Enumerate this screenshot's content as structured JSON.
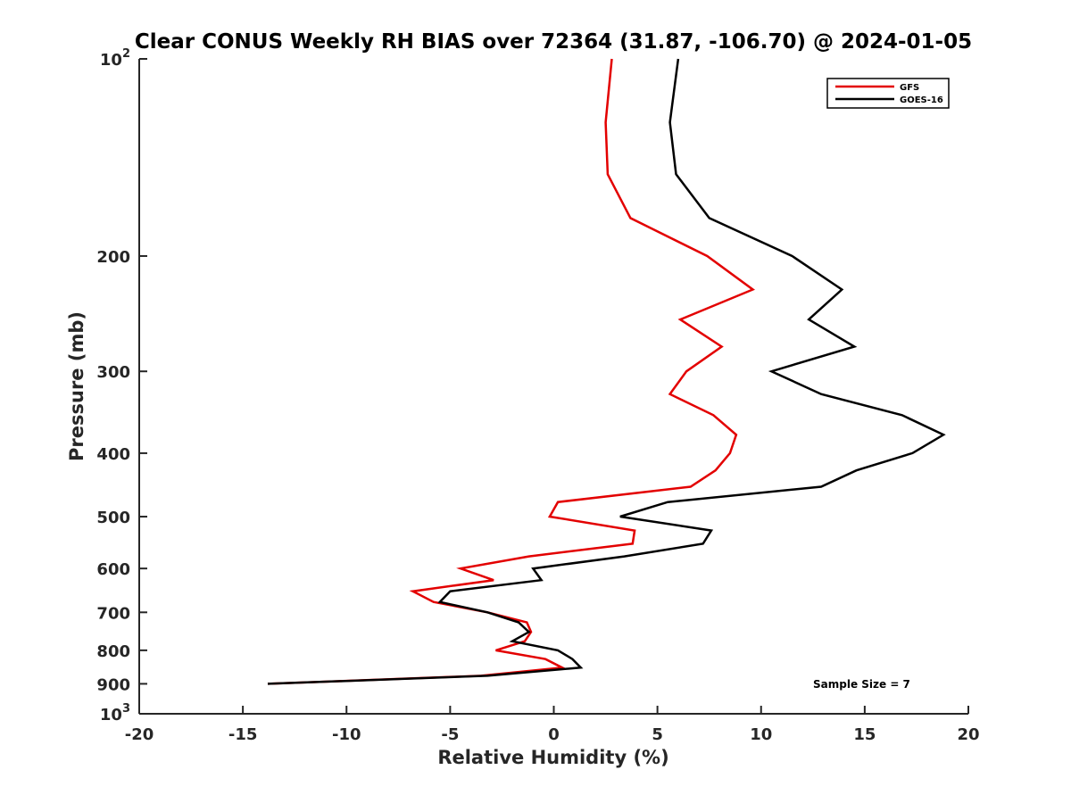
{
  "chart_data": {
    "type": "line",
    "title": "Clear CONUS Weekly RH BIAS over 72364 (31.87, -106.70) @ 2024-01-05",
    "xlabel": "Relative Humidity (%)",
    "ylabel": "Pressure (mb)",
    "xlim": [
      -20,
      20
    ],
    "ylim": [
      100,
      1000
    ],
    "y_scale": "log",
    "y_reversed": true,
    "x_ticks": [
      -20,
      -15,
      -10,
      -5,
      0,
      5,
      10,
      15,
      20
    ],
    "x_tick_labels": [
      "-20",
      "-15",
      "-10",
      "-5",
      "0",
      "5",
      "10",
      "15",
      "20"
    ],
    "y_ticks": [
      100,
      200,
      300,
      400,
      500,
      600,
      700,
      800,
      900,
      1000
    ],
    "y_tick_labels": [
      {
        "base": "10",
        "exp": "2"
      },
      {
        "base": "200",
        "exp": ""
      },
      {
        "base": "300",
        "exp": ""
      },
      {
        "base": "400",
        "exp": ""
      },
      {
        "base": "500",
        "exp": ""
      },
      {
        "base": "600",
        "exp": ""
      },
      {
        "base": "700",
        "exp": ""
      },
      {
        "base": "800",
        "exp": ""
      },
      {
        "base": "900",
        "exp": ""
      },
      {
        "base": "10",
        "exp": "3"
      }
    ],
    "grid": false,
    "legend_position": "top-right",
    "annotation": "Sample Size = 7",
    "series": [
      {
        "name": "GFS",
        "color": "#e30000",
        "points": [
          [
            2.8,
            100
          ],
          [
            2.5,
            125
          ],
          [
            2.6,
            150
          ],
          [
            3.7,
            175
          ],
          [
            7.4,
            200
          ],
          [
            9.6,
            225
          ],
          [
            6.1,
            250
          ],
          [
            8.1,
            275
          ],
          [
            6.4,
            300
          ],
          [
            5.6,
            325
          ],
          [
            7.7,
            350
          ],
          [
            8.8,
            375
          ],
          [
            8.5,
            400
          ],
          [
            7.8,
            425
          ],
          [
            6.6,
            450
          ],
          [
            0.2,
            475
          ],
          [
            -0.2,
            500
          ],
          [
            3.9,
            525
          ],
          [
            3.8,
            550
          ],
          [
            -1.2,
            575
          ],
          [
            -4.5,
            600
          ],
          [
            -2.9,
            625
          ],
          [
            -6.8,
            650
          ],
          [
            -5.8,
            675
          ],
          [
            -3.2,
            700
          ],
          [
            -1.3,
            725
          ],
          [
            -1.1,
            750
          ],
          [
            -1.4,
            775
          ],
          [
            -2.8,
            800
          ],
          [
            -0.4,
            825
          ],
          [
            0.4,
            850
          ],
          [
            -3.5,
            875
          ],
          [
            -13.8,
            900
          ]
        ]
      },
      {
        "name": "GOES-16",
        "color": "#000000",
        "points": [
          [
            6.0,
            100
          ],
          [
            5.6,
            125
          ],
          [
            5.9,
            150
          ],
          [
            7.5,
            175
          ],
          [
            11.5,
            200
          ],
          [
            13.9,
            225
          ],
          [
            12.3,
            250
          ],
          [
            14.5,
            275
          ],
          [
            10.5,
            300
          ],
          [
            12.9,
            325
          ],
          [
            16.8,
            350
          ],
          [
            18.8,
            375
          ],
          [
            17.3,
            400
          ],
          [
            14.6,
            425
          ],
          [
            12.9,
            450
          ],
          [
            5.5,
            475
          ],
          [
            3.2,
            500
          ],
          [
            7.6,
            525
          ],
          [
            7.2,
            550
          ],
          [
            3.4,
            575
          ],
          [
            -1.0,
            600
          ],
          [
            -0.6,
            625
          ],
          [
            -5.0,
            650
          ],
          [
            -5.5,
            675
          ],
          [
            -3.2,
            700
          ],
          [
            -1.7,
            725
          ],
          [
            -1.2,
            750
          ],
          [
            -2.0,
            775
          ],
          [
            0.2,
            800
          ],
          [
            0.9,
            825
          ],
          [
            1.3,
            850
          ],
          [
            -3.2,
            875
          ],
          [
            -13.8,
            900
          ]
        ]
      }
    ]
  }
}
